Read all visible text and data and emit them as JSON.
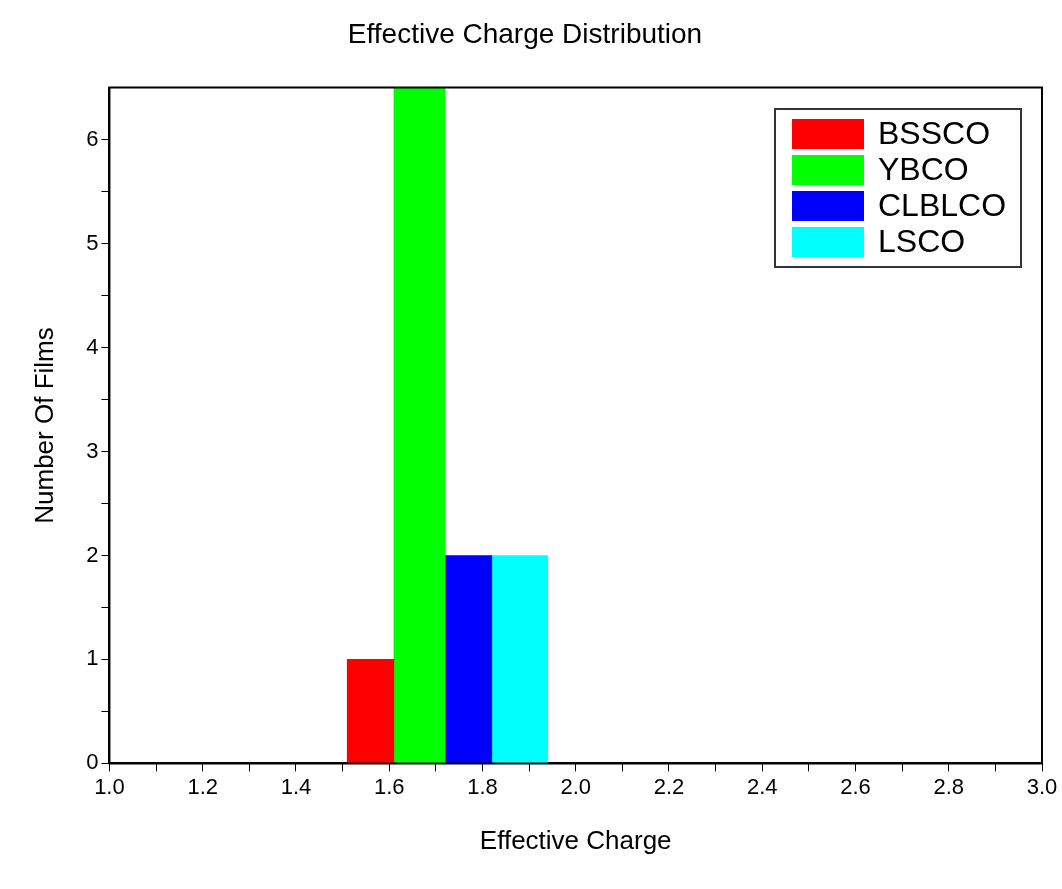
{
  "chart_data": {
    "type": "histogram",
    "title": "Effective Charge Distribution",
    "xlabel": "Effective Charge",
    "ylabel": "Number Of Films",
    "bins": [
      1.51,
      1.61,
      1.72,
      1.82,
      1.94
    ],
    "series": [
      {
        "name": "BSSCO",
        "color": "#ff0000",
        "values": [
          1,
          null,
          null,
          null
        ]
      },
      {
        "name": "YBCO",
        "color": "#00ff00",
        "values": [
          null,
          6.5,
          null,
          null
        ]
      },
      {
        "name": "CLBLCO",
        "color": "#0000ff",
        "values": [
          null,
          null,
          2,
          null
        ]
      },
      {
        "name": "LSCO",
        "color": "#00ffff",
        "values": [
          null,
          null,
          null,
          2
        ]
      }
    ],
    "xlim": [
      1.0,
      3.0
    ],
    "xticks": [
      {
        "value": 1.0,
        "label": "1.0"
      },
      {
        "value": 1.1,
        "label": null
      },
      {
        "value": 1.2,
        "label": "1.2"
      },
      {
        "value": 1.3,
        "label": null
      },
      {
        "value": 1.4,
        "label": "1.4"
      },
      {
        "value": 1.5,
        "label": null
      },
      {
        "value": 1.6,
        "label": "1.6"
      },
      {
        "value": 1.7,
        "label": null
      },
      {
        "value": 1.8,
        "label": "1.8"
      },
      {
        "value": 1.9,
        "label": null
      },
      {
        "value": 2.0,
        "label": "2.0"
      },
      {
        "value": 2.1,
        "label": null
      },
      {
        "value": 2.2,
        "label": "2.2"
      },
      {
        "value": 2.3,
        "label": null
      },
      {
        "value": 2.4,
        "label": "2.4"
      },
      {
        "value": 2.5,
        "label": null
      },
      {
        "value": 2.6,
        "label": "2.6"
      },
      {
        "value": 2.7,
        "label": null
      },
      {
        "value": 2.8,
        "label": "2.8"
      },
      {
        "value": 2.9,
        "label": null
      },
      {
        "value": 3.0,
        "label": "3.0"
      }
    ],
    "ylim": [
      0,
      6.5
    ],
    "yticks": [
      0,
      {
        "value": 0.5,
        "label": null
      },
      1,
      {
        "value": 1.5,
        "label": null
      },
      2,
      {
        "value": 2.5,
        "label": null
      },
      3,
      {
        "value": 3.5,
        "label": null
      },
      4,
      {
        "value": 4.5,
        "label": null
      },
      5,
      {
        "value": 5.5,
        "label": null
      },
      6
    ],
    "grid": false,
    "legend": "top right"
  }
}
